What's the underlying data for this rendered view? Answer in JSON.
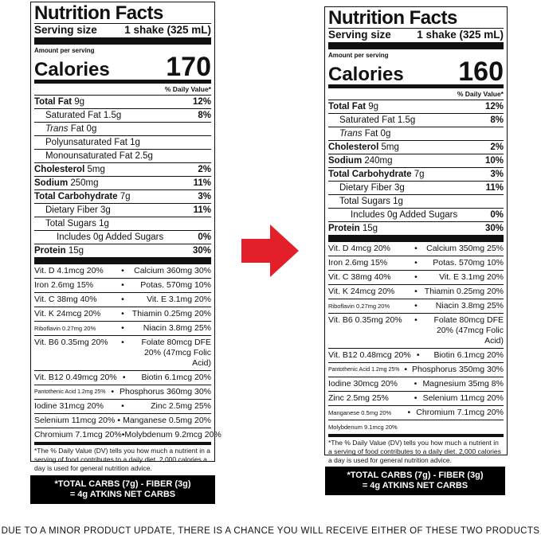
{
  "left": {
    "title": "Nutrition Facts",
    "serving_label": "Serving size",
    "serving_value": "1 shake (325 mL)",
    "amount_per_serving": "Amount per serving",
    "calories_label": "Calories",
    "calories_value": "170",
    "dv_header": "% Daily Value*",
    "nutrients": [
      {
        "name": "Total Fat",
        "amount": "9g",
        "dv": "12%",
        "bold": true,
        "indent": 0
      },
      {
        "name": "Saturated Fat",
        "amount": "1.5g",
        "dv": "8%",
        "bold": false,
        "indent": 1
      },
      {
        "name": "Trans",
        "amount": "Fat 0g",
        "dv": "",
        "bold": false,
        "indent": 1,
        "italic": true
      },
      {
        "name": "Polyunsaturated Fat",
        "amount": "1g",
        "dv": "",
        "bold": false,
        "indent": 1
      },
      {
        "name": "Monounsaturated Fat",
        "amount": "2.5g",
        "dv": "",
        "bold": false,
        "indent": 1
      },
      {
        "name": "Cholesterol",
        "amount": "5mg",
        "dv": "2%",
        "bold": true,
        "indent": 0
      },
      {
        "name": "Sodium",
        "amount": "250mg",
        "dv": "11%",
        "bold": true,
        "indent": 0
      },
      {
        "name": "Total Carbohydrate",
        "amount": "7g",
        "dv": "3%",
        "bold": true,
        "indent": 0
      },
      {
        "name": "Dietary Fiber",
        "amount": "3g",
        "dv": "11%",
        "bold": false,
        "indent": 1
      },
      {
        "name": "Total Sugars",
        "amount": "1g",
        "dv": "",
        "bold": false,
        "indent": 1
      },
      {
        "name": "Includes 0g Added Sugars",
        "amount": "",
        "dv": "0%",
        "bold": false,
        "indent": 2
      }
    ],
    "protein": {
      "name": "Protein",
      "amount": "15g",
      "dv": "30%"
    },
    "vitamins": [
      {
        "l": "Vit. D 4.1mcg 20%",
        "r": "Calcium 360mg 30%"
      },
      {
        "l": "Iron 2.6mg 15%",
        "r": "Potas. 570mg 10%"
      },
      {
        "l": "Vit. C 38mg 40%",
        "r": "Vit. E 3.1mg 20%"
      },
      {
        "l": "Vit. K 24mcg 20%",
        "r": "Thiamin 0.25mg 20%"
      },
      {
        "l": "Riboflavin 0.27mg 20%",
        "r": "Niacin 3.8mg 25%"
      },
      {
        "l": "Vit. B6 0.35mg 20%",
        "r": "Folate 80mcg DFE 20% (47mcg Folic Acid)",
        "tall": true
      },
      {
        "l": "Vit. B12 0.49mcg 20%",
        "r": "Biotin 6.1mcg 20%"
      },
      {
        "l": "Pantothenic Acid 1.2mg 25%",
        "r": "Phosphorus 360mg 30%"
      },
      {
        "l": "Iodine 31mcg 20%",
        "r": "Zinc 2.5mg 25%"
      },
      {
        "l": "Selenium 11mcg 20%",
        "r": "Manganese 0.5mg 20%"
      },
      {
        "l": "Chromium 7.1mcg 20%",
        "r": "Molybdenum 9.2mcg 20%"
      }
    ],
    "footnote": "*The % Daily Value (DV) tells you how much a nutrient in a serving of food contributes to a daily diet. 2,000 calories a day is used for general nutrition advice.",
    "net_carbs_line1": "*TOTAL CARBS (7g) - FIBER (3g)",
    "net_carbs_line2": "= 4g ATKINS NET CARBS"
  },
  "right": {
    "title": "Nutrition Facts",
    "serving_label": "Serving size",
    "serving_value": "1 shake (325 mL)",
    "amount_per_serving": "Amount per serving",
    "calories_label": "Calories",
    "calories_value": "160",
    "dv_header": "% Daily Value*",
    "nutrients": [
      {
        "name": "Total Fat",
        "amount": "9g",
        "dv": "12%",
        "bold": true,
        "indent": 0
      },
      {
        "name": "Saturated Fat",
        "amount": "1.5g",
        "dv": "8%",
        "bold": false,
        "indent": 1
      },
      {
        "name": "Trans",
        "amount": "Fat 0g",
        "dv": "",
        "bold": false,
        "indent": 1,
        "italic": true
      },
      {
        "name": "Cholesterol",
        "amount": "5mg",
        "dv": "2%",
        "bold": true,
        "indent": 0
      },
      {
        "name": "Sodium",
        "amount": "240mg",
        "dv": "10%",
        "bold": true,
        "indent": 0
      },
      {
        "name": "Total Carbohydrate",
        "amount": "7g",
        "dv": "3%",
        "bold": true,
        "indent": 0
      },
      {
        "name": "Dietary Fiber",
        "amount": "3g",
        "dv": "11%",
        "bold": false,
        "indent": 1
      },
      {
        "name": "Total Sugars",
        "amount": "1g",
        "dv": "",
        "bold": false,
        "indent": 1
      },
      {
        "name": "Includes 0g Added Sugars",
        "amount": "",
        "dv": "0%",
        "bold": false,
        "indent": 2
      }
    ],
    "protein": {
      "name": "Protein",
      "amount": "15g",
      "dv": "30%"
    },
    "vitamins": [
      {
        "l": "Vit. D 4mcg 20%",
        "r": "Calcium 350mg 25%"
      },
      {
        "l": "Iron 2.6mg 15%",
        "r": "Potas. 570mg 10%"
      },
      {
        "l": "Vit. C 38mg 40%",
        "r": "Vit. E 3.1mg 20%"
      },
      {
        "l": "Vit. K 24mcg 20%",
        "r": "Thiamin 0.25mg 20%"
      },
      {
        "l": "Riboflavin 0.27mg 20%",
        "r": "Niacin 3.8mg 25%"
      },
      {
        "l": "Vit. B6 0.35mg 20%",
        "r": "Folate 80mcg DFE 20% (47mcg Folic Acid)",
        "tall": true
      },
      {
        "l": "Vit. B12 0.48mcg 20%",
        "r": "Biotin 6.1mcg 20%"
      },
      {
        "l": "Pantothenic Acid 1.2mg 25%",
        "r": "Phosphorus 350mg 30%"
      },
      {
        "l": "Iodine 30mcg 20%",
        "r": "Magnesium 35mg 8%"
      },
      {
        "l": "Zinc 2.5mg 25%",
        "r": "Selenium 11mcg 20%"
      },
      {
        "l": "Manganese 0.5mg 20%",
        "r": "Chromium 7.1mcg 20%"
      },
      {
        "l": "Molybdenum 9.1mcg 20%",
        "r": ""
      }
    ],
    "footnote": "*The % Daily Value (DV) tells you how much a nutrient in a serving of food contributes to a daily diet. 2,000 calories a day is used for general nutrition advice.",
    "net_carbs_line1": "*TOTAL CARBS (7g) - FIBER (3g)",
    "net_carbs_line2": "= 4g ATKINS NET CARBS"
  },
  "arrow_color": "#e3202a",
  "bottom_notice": "DUE TO A MINOR PRODUCT UPDATE, THERE IS A CHANCE YOU WILL RECEIVE EITHER OF THESE TWO PRODUCTS"
}
